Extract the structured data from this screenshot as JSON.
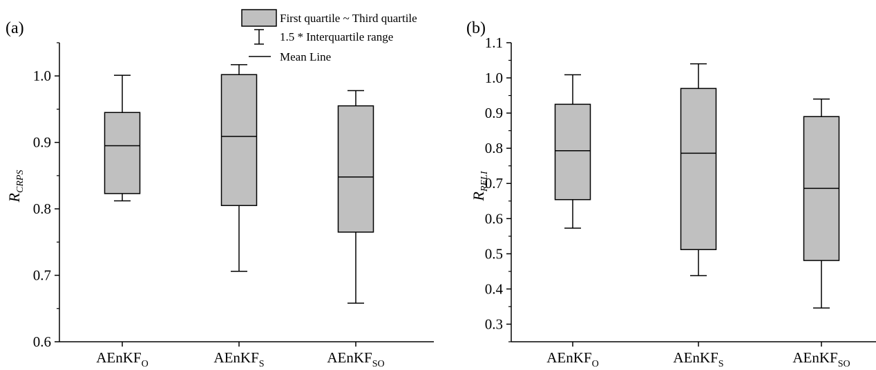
{
  "legend": {
    "box_label": "First quartile ~ Third quartile",
    "whisker_label": "1.5 * Interquartile range",
    "mean_label": "Mean Line"
  },
  "colors": {
    "box_fill": "#c0c0c0",
    "stroke": "#000000",
    "background": "#ffffff"
  },
  "chart_data": [
    {
      "type": "box",
      "panel_label": "(a)",
      "ylabel": {
        "main": "R",
        "sub": "CRPS"
      },
      "ylim": [
        0.6,
        1.05
      ],
      "yticks": [
        "0.6",
        "0.7",
        "0.8",
        "0.9",
        "1.0"
      ],
      "categories": [
        {
          "main": "AEnKF",
          "sub": "O"
        },
        {
          "main": "AEnKF",
          "sub": "S"
        },
        {
          "main": "AEnKF",
          "sub": "SO"
        }
      ],
      "boxes": [
        {
          "whisker_low": 0.812,
          "q1": 0.823,
          "mean": 0.895,
          "q3": 0.945,
          "whisker_high": 1.001
        },
        {
          "whisker_low": 0.706,
          "q1": 0.805,
          "mean": 0.909,
          "q3": 1.002,
          "whisker_high": 1.017
        },
        {
          "whisker_low": 0.658,
          "q1": 0.765,
          "mean": 0.848,
          "q3": 0.955,
          "whisker_high": 0.978
        }
      ]
    },
    {
      "type": "box",
      "panel_label": "(b)",
      "ylabel": {
        "main": "R",
        "sub": "RELI"
      },
      "ylim": [
        0.25,
        1.1
      ],
      "yticks": [
        "0.3",
        "0.4",
        "0.5",
        "0.6",
        "0.7",
        "0.8",
        "0.9",
        "1.0",
        "1.1"
      ],
      "categories": [
        {
          "main": "AEnKF",
          "sub": "O"
        },
        {
          "main": "AEnKF",
          "sub": "S"
        },
        {
          "main": "AEnKF",
          "sub": "SO"
        }
      ],
      "boxes": [
        {
          "whisker_low": 0.573,
          "q1": 0.654,
          "mean": 0.793,
          "q3": 0.925,
          "whisker_high": 1.009
        },
        {
          "whisker_low": 0.438,
          "q1": 0.512,
          "mean": 0.786,
          "q3": 0.97,
          "whisker_high": 1.04
        },
        {
          "whisker_low": 0.346,
          "q1": 0.481,
          "mean": 0.686,
          "q3": 0.89,
          "whisker_high": 0.94
        }
      ]
    }
  ]
}
